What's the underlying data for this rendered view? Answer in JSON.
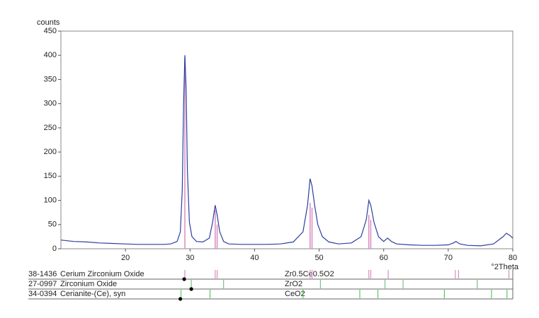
{
  "chart_data": {
    "type": "line",
    "y_label": "counts",
    "x_label": "°2Theta",
    "xlim": [
      10,
      80
    ],
    "ylim": [
      0,
      450
    ],
    "xticks": [
      20,
      30,
      40,
      50,
      60,
      70,
      80
    ],
    "yticks": [
      0,
      50,
      100,
      150,
      200,
      250,
      300,
      350,
      400,
      450
    ],
    "color": "#2b3fa0",
    "x": [
      10,
      12,
      14,
      16,
      18,
      20,
      22,
      24,
      26,
      27,
      28,
      28.5,
      28.8,
      29.0,
      29.2,
      29.4,
      29.6,
      29.9,
      30.3,
      31,
      32,
      33,
      33.5,
      33.9,
      34.2,
      34.6,
      35.2,
      36,
      38,
      40,
      42,
      44,
      46,
      47.5,
      48.2,
      48.6,
      48.9,
      49.3,
      49.8,
      50.5,
      51.5,
      53,
      55,
      56.5,
      57.3,
      57.7,
      58.0,
      58.5,
      59.2,
      60,
      60.6,
      61.2,
      62,
      64,
      66,
      68,
      70,
      70.8,
      71.2,
      71.8,
      73,
      75,
      77,
      78.5,
      79,
      79.5,
      80
    ],
    "values": [
      18,
      15,
      14,
      12,
      11,
      10,
      9,
      9,
      9,
      10,
      15,
      35,
      120,
      300,
      400,
      330,
      160,
      55,
      25,
      15,
      14,
      22,
      55,
      90,
      70,
      35,
      15,
      10,
      9,
      9,
      9,
      10,
      14,
      35,
      90,
      145,
      130,
      90,
      50,
      25,
      14,
      10,
      12,
      25,
      60,
      100,
      90,
      55,
      25,
      15,
      22,
      15,
      10,
      8,
      7,
      7,
      8,
      12,
      15,
      10,
      7,
      6,
      10,
      25,
      32,
      28,
      22
    ],
    "sticks": {
      "color": "#d98cc0",
      "x": [
        29.2,
        33.9,
        34.2,
        48.6,
        48.9,
        57.7,
        58.0
      ],
      "values": [
        395,
        80,
        50,
        95,
        85,
        70,
        60
      ]
    },
    "references": [
      {
        "code": "38-1436",
        "name": "Cerium Zirconium Oxide",
        "formula": "Zr0.5Ce0.5O2",
        "color": "#d98cc0",
        "positions": [
          29.2,
          33.9,
          34.2,
          48.6,
          48.9,
          57.7,
          58.0,
          60.7,
          71.1,
          71.6,
          79.4
        ],
        "marker": 29.1
      },
      {
        "code": "27-0997",
        "name": "Zirconium Oxide",
        "formula": "ZrO2",
        "color": "#7bbf8a",
        "positions": [
          30.2,
          35.2,
          50.2,
          60.2,
          63.0,
          74.5
        ],
        "marker": 30.2
      },
      {
        "code": "34-0394",
        "name": "Cerianite-(Ce), syn",
        "formula": "CeO2",
        "color": "#5cc860",
        "positions": [
          28.6,
          33.1,
          47.5,
          56.3,
          59.1,
          69.4,
          76.7,
          79.1
        ],
        "marker": 28.5
      }
    ]
  }
}
